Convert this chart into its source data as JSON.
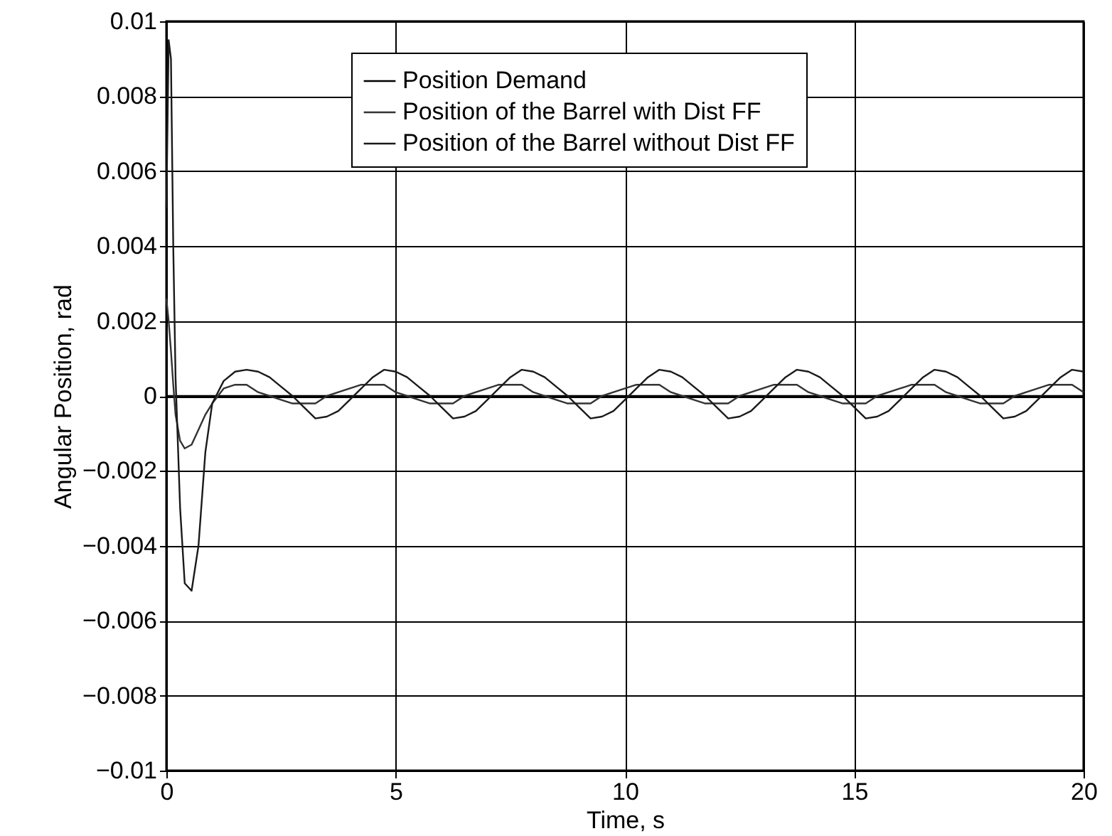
{
  "chart_data": {
    "type": "line",
    "xlabel": "Time, s",
    "ylabel": "Angular Position, rad",
    "xlim": [
      0,
      20
    ],
    "xticks": [
      0,
      5,
      10,
      15,
      20
    ],
    "ylim": [
      -0.01,
      0.01
    ],
    "yticks": [
      -0.01,
      -0.008,
      -0.006,
      -0.004,
      -0.002,
      0,
      0.002,
      0.004,
      0.006,
      0.008,
      0.01
    ],
    "grid": true,
    "legend": "top",
    "line_style": "solid",
    "marker": "none",
    "x": [
      0,
      0.05,
      0.1,
      0.15,
      0.2,
      0.3,
      0.4,
      0.55,
      0.7,
      0.85,
      1,
      1.25,
      1.5,
      1.75,
      2,
      2.25,
      2.5,
      2.75,
      3,
      3.25,
      3.5,
      3.75,
      4,
      4.25,
      4.5,
      4.75,
      5,
      5.25,
      5.5,
      5.75,
      6,
      6.25,
      6.5,
      6.75,
      7,
      7.25,
      7.5,
      7.75,
      8,
      8.25,
      8.5,
      8.75,
      9,
      9.25,
      9.5,
      9.75,
      10,
      10.25,
      10.5,
      10.75,
      11,
      11.25,
      11.5,
      11.75,
      12,
      12.25,
      12.5,
      12.75,
      13,
      13.25,
      13.5,
      13.75,
      14,
      14.25,
      14.5,
      14.75,
      15,
      15.25,
      15.5,
      15.75,
      16,
      16.25,
      16.5,
      16.75,
      17,
      17.25,
      17.5,
      17.75,
      18,
      18.25,
      18.5,
      18.75,
      19,
      19.25,
      19.5,
      19.75,
      20
    ],
    "series": [
      {
        "name": "Position Demand",
        "color": "#000000",
        "x": [
          0,
          20
        ],
        "values": [
          0,
          0
        ]
      },
      {
        "name": "Position of the Barrel with Dist FF",
        "color": "#333333",
        "values": [
          0.0026,
          0.002,
          0.0012,
          0.0003,
          -0.0005,
          -0.0012,
          -0.0014,
          -0.0013,
          -0.0009,
          -0.0005,
          -0.0002,
          0.0002,
          0.0003,
          0.0003,
          0.0001,
          0,
          -0.0001,
          -0.0002,
          -0.0002,
          -0.0002,
          0,
          0.0001,
          0.0002,
          0.0003,
          0.0003,
          0.0003,
          0.0001,
          0,
          -0.0001,
          -0.0002,
          -0.0002,
          -0.0002,
          0,
          0.0001,
          0.0002,
          0.0003,
          0.0003,
          0.0003,
          0.0001,
          0,
          -0.0001,
          -0.0002,
          -0.0002,
          -0.0002,
          0,
          0.0001,
          0.0002,
          0.0003,
          0.0003,
          0.0003,
          0.0001,
          0,
          -0.0001,
          -0.0002,
          -0.0002,
          -0.0002,
          0,
          0.0001,
          0.0002,
          0.0003,
          0.0003,
          0.0003,
          0.0001,
          0,
          -0.0001,
          -0.0002,
          -0.0002,
          -0.0002,
          0,
          0.0001,
          0.0002,
          0.0003,
          0.0003,
          0.0003,
          0.0001,
          0,
          -0.0001,
          -0.0002,
          -0.0002,
          -0.0002,
          0,
          0.0001,
          0.0002,
          0.0003,
          0.0003,
          0.0003,
          0.0001
        ]
      },
      {
        "name": "Position of the Barrel without Dist FF",
        "color": "#1a1a1a",
        "values": [
          0.005,
          0.0095,
          0.009,
          0.004,
          0.0005,
          -0.003,
          -0.005,
          -0.0052,
          -0.004,
          -0.0015,
          -0.0002,
          0.0004,
          0.00065,
          0.0007,
          0.00065,
          0.0005,
          0.00025,
          0,
          -0.0003,
          -0.0006,
          -0.00055,
          -0.0004,
          -0.0001,
          0.0002,
          0.0005,
          0.0007,
          0.00065,
          0.0005,
          0.00025,
          0,
          -0.0003,
          -0.0006,
          -0.00055,
          -0.0004,
          -0.0001,
          0.0002,
          0.0005,
          0.0007,
          0.00065,
          0.0005,
          0.00025,
          0,
          -0.0003,
          -0.0006,
          -0.00055,
          -0.0004,
          -0.0001,
          0.0002,
          0.0005,
          0.0007,
          0.00065,
          0.0005,
          0.00025,
          0,
          -0.0003,
          -0.0006,
          -0.00055,
          -0.0004,
          -0.0001,
          0.0002,
          0.0005,
          0.0007,
          0.00065,
          0.0005,
          0.00025,
          0,
          -0.0003,
          -0.0006,
          -0.00055,
          -0.0004,
          -0.0001,
          0.0002,
          0.0005,
          0.0007,
          0.00065,
          0.0005,
          0.00025,
          0,
          -0.0003,
          -0.0006,
          -0.00055,
          -0.0004,
          -0.0001,
          0.0002,
          0.0005,
          0.0007,
          0.00065
        ]
      }
    ]
  }
}
